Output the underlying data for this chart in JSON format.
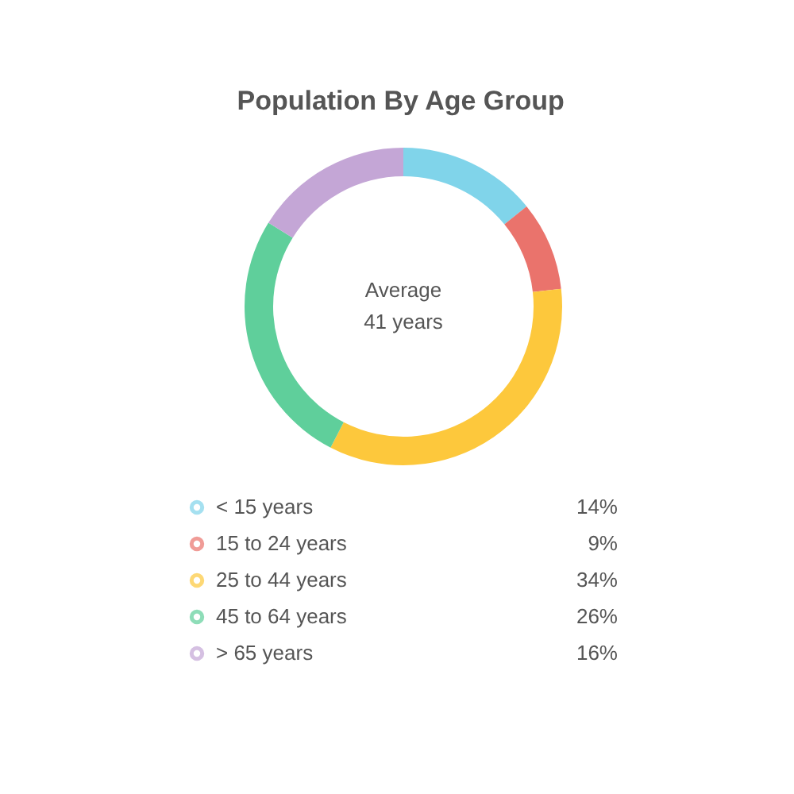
{
  "chart_data": {
    "type": "donut",
    "title": "Population By Age Group",
    "categories": [
      "< 15 years",
      "15 to 24 years",
      "25 to 44 years",
      "45 to 64 years",
      "> 65 years"
    ],
    "values": [
      14,
      9,
      34,
      26,
      16
    ],
    "value_labels": [
      "14%",
      "9%",
      "34%",
      "26%",
      "16%"
    ],
    "colors": [
      "#80d4ea",
      "#ea736c",
      "#fdc83c",
      "#5fcf9b",
      "#c4a6d6"
    ],
    "annotations": [
      "Average",
      "41 years"
    ],
    "legend": "bottom"
  }
}
